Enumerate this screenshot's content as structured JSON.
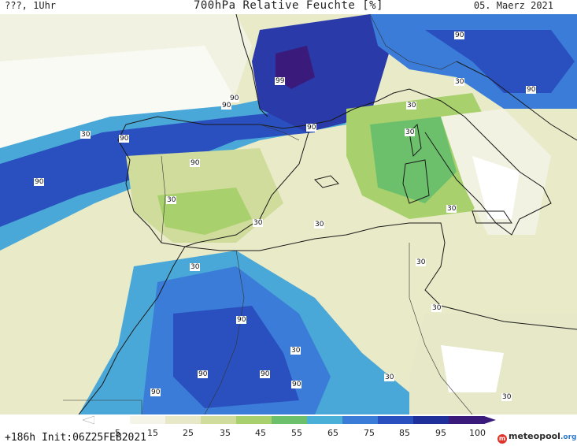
{
  "header": {
    "left_text": "???, 1Uhr",
    "title": "700hPa Relative Feuchte [%]",
    "date": "05. Maerz 2021"
  },
  "map": {
    "contour_labels": [
      "90",
      "99",
      "90",
      "90",
      "30",
      "90",
      "90",
      "90",
      "30",
      "30",
      "30",
      "30",
      "30",
      "30",
      "30",
      "30",
      "30",
      "90",
      "90",
      "90",
      "90",
      "90",
      "90",
      "30",
      "30",
      "30",
      "30",
      "90"
    ]
  },
  "legend": {
    "ticks": [
      "5",
      "15",
      "25",
      "35",
      "45",
      "55",
      "65",
      "75",
      "85",
      "95",
      "100"
    ],
    "colors": [
      "#ffffff",
      "#f4f4e8",
      "#e6e8c8",
      "#cfdc9c",
      "#a8d06c",
      "#6cc06c",
      "#4ab0d8",
      "#3a7cd8",
      "#2a50c0",
      "#20309a",
      "#3a1a7a"
    ]
  },
  "footer": {
    "init_text": "+186h  Init:06Z25FEB2021",
    "brand_main": "meteopool",
    "brand_suffix": ".org",
    "brand_mark": "m"
  }
}
